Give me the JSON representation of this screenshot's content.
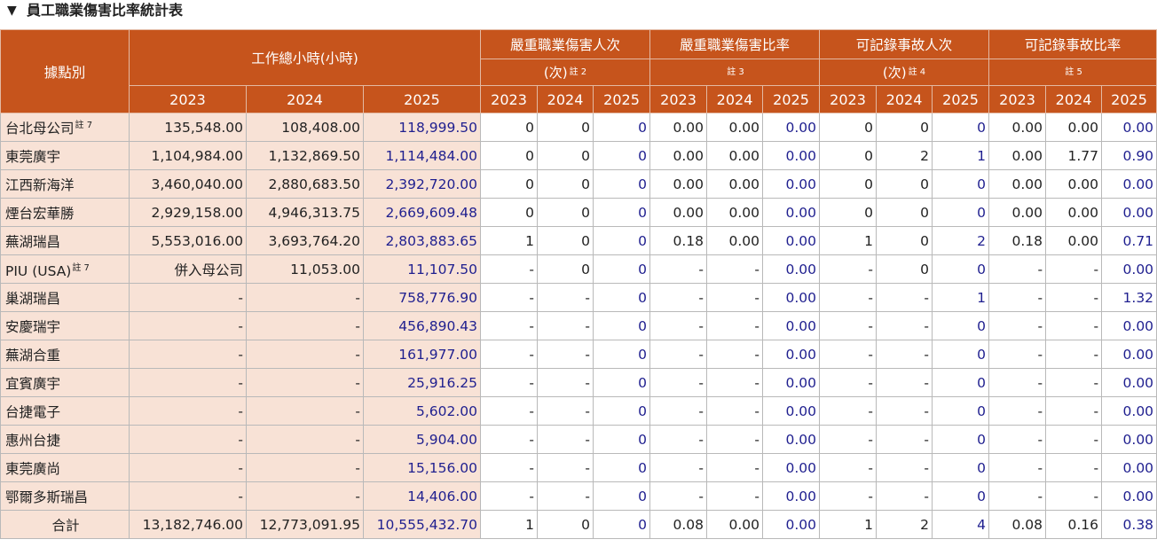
{
  "title": {
    "marker": "▼",
    "text": "員工職業傷害比率統計表"
  },
  "header": {
    "site_label": "據點別",
    "groups": [
      {
        "label": "工作總小時(小時)",
        "sub": "",
        "note": ""
      },
      {
        "label": "嚴重職業傷害人次",
        "sub": "(次)",
        "note": "註 2"
      },
      {
        "label": "嚴重職業傷害比率",
        "sub": "",
        "note": "註 3"
      },
      {
        "label": "可記錄事故人次",
        "sub": "(次)",
        "note": "註 4"
      },
      {
        "label": "可記錄事故比率",
        "sub": "",
        "note": "註 5"
      }
    ],
    "years": [
      "2023",
      "2024",
      "2025"
    ]
  },
  "rows": [
    {
      "site": "台北母公司",
      "note": "註 7",
      "hours": [
        "135,548.00",
        "108,408.00",
        "118,999.50"
      ],
      "sev_count": [
        "0",
        "0",
        "0"
      ],
      "sev_rate": [
        "0.00",
        "0.00",
        "0.00"
      ],
      "rec_count": [
        "0",
        "0",
        "0"
      ],
      "rec_rate": [
        "0.00",
        "0.00",
        "0.00"
      ]
    },
    {
      "site": "東莞廣宇",
      "note": "",
      "hours": [
        "1,104,984.00",
        "1,132,869.50",
        "1,114,484.00"
      ],
      "sev_count": [
        "0",
        "0",
        "0"
      ],
      "sev_rate": [
        "0.00",
        "0.00",
        "0.00"
      ],
      "rec_count": [
        "0",
        "2",
        "1"
      ],
      "rec_rate": [
        "0.00",
        "1.77",
        "0.90"
      ]
    },
    {
      "site": "江西新海洋",
      "note": "",
      "hours": [
        "3,460,040.00",
        "2,880,683.50",
        "2,392,720.00"
      ],
      "sev_count": [
        "0",
        "0",
        "0"
      ],
      "sev_rate": [
        "0.00",
        "0.00",
        "0.00"
      ],
      "rec_count": [
        "0",
        "0",
        "0"
      ],
      "rec_rate": [
        "0.00",
        "0.00",
        "0.00"
      ]
    },
    {
      "site": "煙台宏華勝",
      "note": "",
      "hours": [
        "2,929,158.00",
        "4,946,313.75",
        "2,669,609.48"
      ],
      "sev_count": [
        "0",
        "0",
        "0"
      ],
      "sev_rate": [
        "0.00",
        "0.00",
        "0.00"
      ],
      "rec_count": [
        "0",
        "0",
        "0"
      ],
      "rec_rate": [
        "0.00",
        "0.00",
        "0.00"
      ]
    },
    {
      "site": "蕪湖瑞昌",
      "note": "",
      "hours": [
        "5,553,016.00",
        "3,693,764.20",
        "2,803,883.65"
      ],
      "sev_count": [
        "1",
        "0",
        "0"
      ],
      "sev_rate": [
        "0.18",
        "0.00",
        "0.00"
      ],
      "rec_count": [
        "1",
        "0",
        "2"
      ],
      "rec_rate": [
        "0.18",
        "0.00",
        "0.71"
      ]
    },
    {
      "site": "PIU (USA)",
      "note": "註 7",
      "hours": [
        "併入母公司",
        "11,053.00",
        "11,107.50"
      ],
      "sev_count": [
        "-",
        "0",
        "0"
      ],
      "sev_rate": [
        "-",
        "-",
        "0.00"
      ],
      "rec_count": [
        "-",
        "0",
        "0"
      ],
      "rec_rate": [
        "-",
        "-",
        "0.00"
      ]
    },
    {
      "site": "巢湖瑞昌",
      "note": "",
      "hours": [
        "-",
        "-",
        "758,776.90"
      ],
      "sev_count": [
        "-",
        "-",
        "0"
      ],
      "sev_rate": [
        "-",
        "-",
        "0.00"
      ],
      "rec_count": [
        "-",
        "-",
        "1"
      ],
      "rec_rate": [
        "-",
        "-",
        "1.32"
      ]
    },
    {
      "site": "安慶瑞宇",
      "note": "",
      "hours": [
        "-",
        "-",
        "456,890.43"
      ],
      "sev_count": [
        "-",
        "-",
        "0"
      ],
      "sev_rate": [
        "-",
        "-",
        "0.00"
      ],
      "rec_count": [
        "-",
        "-",
        "0"
      ],
      "rec_rate": [
        "-",
        "-",
        "0.00"
      ]
    },
    {
      "site": "蕪湖合重",
      "note": "",
      "hours": [
        "-",
        "-",
        "161,977.00"
      ],
      "sev_count": [
        "-",
        "-",
        "0"
      ],
      "sev_rate": [
        "-",
        "-",
        "0.00"
      ],
      "rec_count": [
        "-",
        "-",
        "0"
      ],
      "rec_rate": [
        "-",
        "-",
        "0.00"
      ]
    },
    {
      "site": "宜賓廣宇",
      "note": "",
      "hours": [
        "-",
        "-",
        "25,916.25"
      ],
      "sev_count": [
        "-",
        "-",
        "0"
      ],
      "sev_rate": [
        "-",
        "-",
        "0.00"
      ],
      "rec_count": [
        "-",
        "-",
        "0"
      ],
      "rec_rate": [
        "-",
        "-",
        "0.00"
      ]
    },
    {
      "site": "台捷電子",
      "note": "",
      "hours": [
        "-",
        "-",
        "5,602.00"
      ],
      "sev_count": [
        "-",
        "-",
        "0"
      ],
      "sev_rate": [
        "-",
        "-",
        "0.00"
      ],
      "rec_count": [
        "-",
        "-",
        "0"
      ],
      "rec_rate": [
        "-",
        "-",
        "0.00"
      ]
    },
    {
      "site": "惠州台捷",
      "note": "",
      "hours": [
        "-",
        "-",
        "5,904.00"
      ],
      "sev_count": [
        "-",
        "-",
        "0"
      ],
      "sev_rate": [
        "-",
        "-",
        "0.00"
      ],
      "rec_count": [
        "-",
        "-",
        "0"
      ],
      "rec_rate": [
        "-",
        "-",
        "0.00"
      ]
    },
    {
      "site": "東莞廣尚",
      "note": "",
      "hours": [
        "-",
        "-",
        "15,156.00"
      ],
      "sev_count": [
        "-",
        "-",
        "0"
      ],
      "sev_rate": [
        "-",
        "-",
        "0.00"
      ],
      "rec_count": [
        "-",
        "-",
        "0"
      ],
      "rec_rate": [
        "-",
        "-",
        "0.00"
      ]
    },
    {
      "site": "鄂爾多斯瑞昌",
      "note": "",
      "hours": [
        "-",
        "-",
        "14,406.00"
      ],
      "sev_count": [
        "-",
        "-",
        "0"
      ],
      "sev_rate": [
        "-",
        "-",
        "0.00"
      ],
      "rec_count": [
        "-",
        "-",
        "0"
      ],
      "rec_rate": [
        "-",
        "-",
        "0.00"
      ]
    },
    {
      "site": "合計",
      "note": "",
      "hours": [
        "13,182,746.00",
        "12,773,091.95",
        "10,555,432.70"
      ],
      "sev_count": [
        "1",
        "0",
        "0"
      ],
      "sev_rate": [
        "0.08",
        "0.00",
        "0.00"
      ],
      "rec_count": [
        "1",
        "2",
        "4"
      ],
      "rec_rate": [
        "0.08",
        "0.16",
        "0.38"
      ]
    }
  ],
  "colors": {
    "header_bg": "#c6541c",
    "label_bg": "#f8e2d6",
    "current_year_text": "#1f1f8f"
  }
}
